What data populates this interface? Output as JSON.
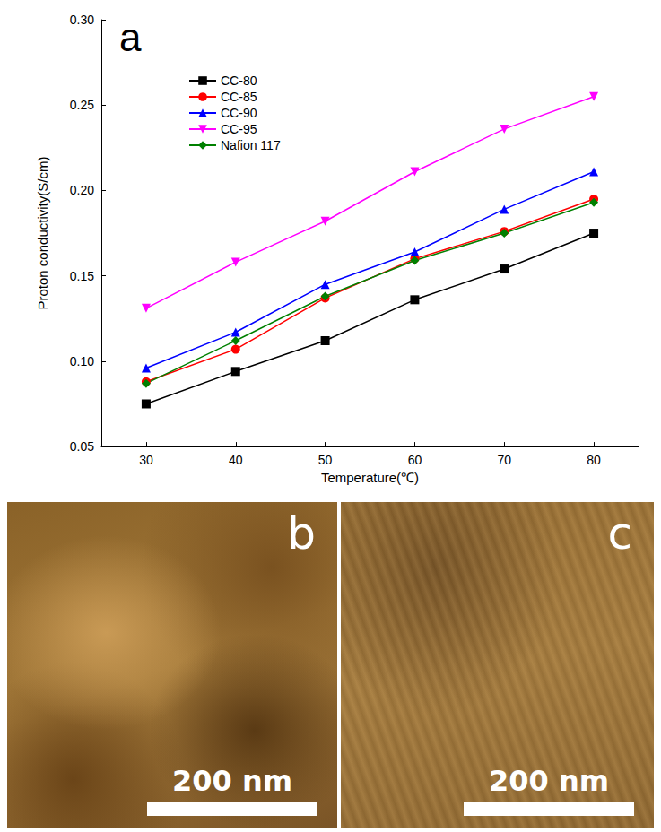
{
  "chart_data": {
    "type": "line",
    "title": "a",
    "x_label": "Temperature(℃)",
    "y_label": "Proton conductivity(S/cm)",
    "x": [
      30,
      40,
      50,
      60,
      70,
      80
    ],
    "series": [
      {
        "name": "CC-80",
        "color": "#000000",
        "marker": "square",
        "values": [
          0.075,
          0.094,
          0.112,
          0.136,
          0.154,
          0.175
        ]
      },
      {
        "name": "CC-85",
        "color": "#ff0000",
        "marker": "circle",
        "values": [
          0.088,
          0.107,
          0.137,
          0.16,
          0.176,
          0.195
        ]
      },
      {
        "name": "CC-90",
        "color": "#0000ff",
        "marker": "triangle",
        "values": [
          0.096,
          0.117,
          0.145,
          0.164,
          0.189,
          0.211
        ]
      },
      {
        "name": "CC-95",
        "color": "#ff00ff",
        "marker": "triangle_down",
        "values": [
          0.131,
          0.158,
          0.182,
          0.211,
          0.236,
          0.255
        ]
      },
      {
        "name": "Nafion 117",
        "color": "#008000",
        "marker": "diamond",
        "values": [
          0.087,
          0.112,
          0.138,
          0.159,
          0.175,
          0.193
        ]
      }
    ],
    "xlim": [
      25,
      85
    ],
    "xticks": [
      30,
      40,
      50,
      60,
      70,
      80
    ],
    "ylim": [
      0.05,
      0.3
    ],
    "yticks": [
      0.05,
      {
        "value": 0.1,
        "label": "0.10"
      },
      0.15,
      {
        "value": 0.2,
        "label": "0.20"
      },
      0.25,
      {
        "value": 0.3,
        "label": "0.30"
      }
    ],
    "grid": false,
    "legend": "upper left"
  },
  "images": [
    {
      "label": "b",
      "scale_bar": "200 nm"
    },
    {
      "label": "c",
      "scale_bar": "200 nm"
    }
  ]
}
